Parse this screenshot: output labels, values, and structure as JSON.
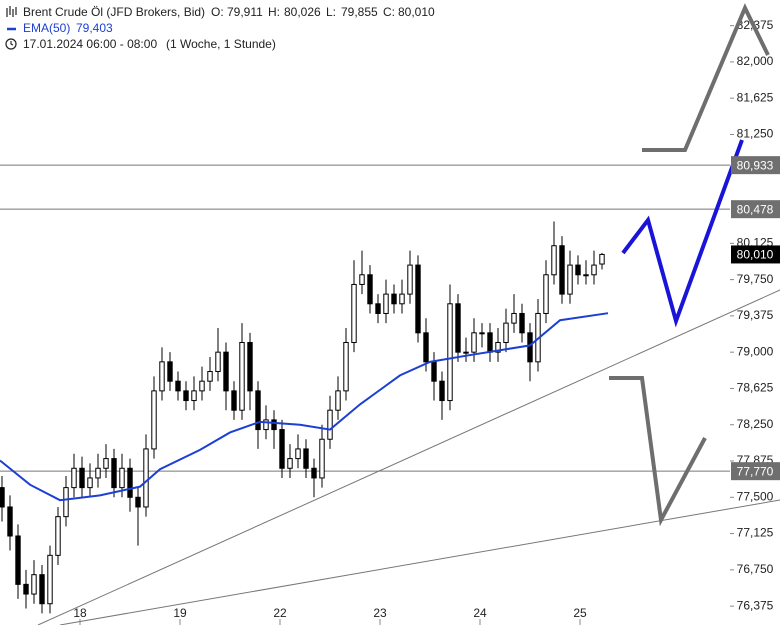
{
  "chart_data": {
    "type": "candlestick",
    "title": "Brent Crude Öl (JFD Brokers, Bid)",
    "ohlc": [
      {
        "key": "O:",
        "text": "79,911"
      },
      {
        "key": "H:",
        "text": "80,026"
      },
      {
        "key": "L:",
        "text": "79,855"
      },
      {
        "key": "C:",
        "text": "80,010"
      }
    ],
    "period": "17.01.2024 06:00 - 08:00",
    "interval": "(1 Woche, 1 Stunde)",
    "x": [
      0,
      1,
      2,
      3,
      4,
      5,
      6,
      7,
      8,
      9,
      10,
      11,
      12,
      13,
      14,
      15,
      16,
      17,
      18,
      19,
      20,
      21,
      22,
      23,
      24,
      25,
      26,
      27,
      28,
      29,
      30,
      31,
      32,
      33,
      34,
      35,
      36,
      37,
      38,
      39,
      40,
      41,
      42,
      43,
      44,
      45,
      46,
      47,
      48,
      49,
      50,
      51,
      52,
      53,
      54,
      55,
      56,
      57,
      58,
      59,
      60,
      61,
      62,
      63,
      64,
      65,
      66,
      67,
      68,
      69,
      70,
      71,
      72,
      73,
      74,
      75
    ],
    "open": [
      77.6,
      77.4,
      77.1,
      76.6,
      76.5,
      76.7,
      76.4,
      76.9,
      77.3,
      77.6,
      77.8,
      77.6,
      77.7,
      77.8,
      77.9,
      77.6,
      77.8,
      77.5,
      77.4,
      78.0,
      78.6,
      78.9,
      78.7,
      78.6,
      78.5,
      78.6,
      78.7,
      78.8,
      79.0,
      78.6,
      78.4,
      79.1,
      78.6,
      78.2,
      78.3,
      78.2,
      77.8,
      77.9,
      78.0,
      77.8,
      77.7,
      78.1,
      78.4,
      78.6,
      79.1,
      79.7,
      79.8,
      79.5,
      79.4,
      79.6,
      79.5,
      79.6,
      79.9,
      79.2,
      78.9,
      78.7,
      78.5,
      79.5,
      79.0,
      79.0,
      79.2,
      79.2,
      79.0,
      79.1,
      79.3,
      79.4,
      79.2,
      78.9,
      79.4,
      79.8,
      80.1,
      79.6,
      79.9,
      79.8,
      79.8,
      79.911
    ],
    "high": [
      77.72,
      77.52,
      77.22,
      76.75,
      76.85,
      76.8,
      77.0,
      77.4,
      77.72,
      77.95,
      77.92,
      77.85,
      77.95,
      78.05,
      78.0,
      77.95,
      77.9,
      77.6,
      78.15,
      78.75,
      79.05,
      79.0,
      78.8,
      78.7,
      78.75,
      78.85,
      78.95,
      79.25,
      79.1,
      78.7,
      79.3,
      79.2,
      78.7,
      78.45,
      78.4,
      78.3,
      78.05,
      78.15,
      78.1,
      77.9,
      78.25,
      78.55,
      78.75,
      79.25,
      79.95,
      80.05,
      79.9,
      79.6,
      79.75,
      79.7,
      79.75,
      80.05,
      80.0,
      79.35,
      79.0,
      78.8,
      79.7,
      79.6,
      79.15,
      79.35,
      79.3,
      79.3,
      79.25,
      79.45,
      79.6,
      79.5,
      79.3,
      79.55,
      79.95,
      80.35,
      80.2,
      80.05,
      80.0,
      79.95,
      80.05,
      80.026
    ],
    "low": [
      77.25,
      76.95,
      76.45,
      76.35,
      76.4,
      76.3,
      76.3,
      76.8,
      77.2,
      77.5,
      77.5,
      77.5,
      77.6,
      77.7,
      77.5,
      77.5,
      77.35,
      77.0,
      77.3,
      77.9,
      78.5,
      78.6,
      78.5,
      78.4,
      78.4,
      78.5,
      78.6,
      78.7,
      78.4,
      78.3,
      78.3,
      78.4,
      78.0,
      78.1,
      78.0,
      77.7,
      77.7,
      77.8,
      77.7,
      77.5,
      77.6,
      78.0,
      78.3,
      78.5,
      79.0,
      79.6,
      79.4,
      79.3,
      79.3,
      79.4,
      79.4,
      79.5,
      79.1,
      78.8,
      78.5,
      78.3,
      78.4,
      78.9,
      78.9,
      78.9,
      79.05,
      78.9,
      78.9,
      79.0,
      79.2,
      79.1,
      78.7,
      78.8,
      79.3,
      79.7,
      79.5,
      79.5,
      79.7,
      79.7,
      79.7,
      79.855
    ],
    "close": [
      77.4,
      77.1,
      76.6,
      76.5,
      76.7,
      76.4,
      76.9,
      77.3,
      77.6,
      77.8,
      77.6,
      77.7,
      77.8,
      77.9,
      77.6,
      77.8,
      77.5,
      77.4,
      78.0,
      78.6,
      78.9,
      78.7,
      78.6,
      78.5,
      78.6,
      78.7,
      78.8,
      79.0,
      78.6,
      78.4,
      79.1,
      78.6,
      78.2,
      78.3,
      78.2,
      77.8,
      77.9,
      78.0,
      77.8,
      77.7,
      78.1,
      78.4,
      78.6,
      79.1,
      79.7,
      79.8,
      79.5,
      79.4,
      79.6,
      79.5,
      79.6,
      79.9,
      79.2,
      78.9,
      78.7,
      78.5,
      79.5,
      79.0,
      79.0,
      79.2,
      79.2,
      79.0,
      79.1,
      79.3,
      79.4,
      79.2,
      78.9,
      79.4,
      79.8,
      80.1,
      79.6,
      79.9,
      79.8,
      79.8,
      79.9,
      80.01
    ],
    "up_color": "#ffffff",
    "down_color": "#000000",
    "ema": {
      "name": "EMA(50)",
      "value_label": "79,403",
      "color": "#1c3fd4",
      "x": [
        -0.25,
        3.5,
        7.25,
        12.25,
        17.25,
        19.75,
        24.75,
        28.5,
        32.25,
        37.25,
        41,
        44.75,
        49.75,
        53.5,
        58.5,
        62.25,
        66,
        69.75,
        75.75
      ],
      "values": [
        77.88,
        77.63,
        77.47,
        77.52,
        77.61,
        77.79,
        77.99,
        78.17,
        78.28,
        78.25,
        78.2,
        78.46,
        78.76,
        78.9,
        78.97,
        79.02,
        79.07,
        79.33,
        79.403
      ]
    },
    "levels": [
      {
        "value": 80.933,
        "label": "80,933"
      },
      {
        "value": 80.478,
        "label": "80,478"
      },
      {
        "value": 77.77,
        "label": "77,770"
      }
    ],
    "last_price": {
      "value": 80.01,
      "label": "80,010"
    },
    "xlim": [
      -0.25,
      91
    ],
    "xticks": [
      {
        "value": 9.75,
        "label": "18"
      },
      {
        "value": 22.25,
        "label": "19"
      },
      {
        "value": 34.75,
        "label": "22"
      },
      {
        "value": 47.25,
        "label": "23"
      },
      {
        "value": 59.75,
        "label": "24"
      },
      {
        "value": 72.25,
        "label": "25"
      }
    ],
    "ylim": [
      76.18,
      82.64
    ],
    "yticks": [
      {
        "value": 76.375,
        "label": "76,375"
      },
      {
        "value": 76.75,
        "label": "76,750"
      },
      {
        "value": 77.125,
        "label": "77,125"
      },
      {
        "value": 77.5,
        "label": "77,500"
      },
      {
        "value": 77.875,
        "label": "77,875"
      },
      {
        "value": 78.25,
        "label": "78,250"
      },
      {
        "value": 78.625,
        "label": "78,625"
      },
      {
        "value": 79.0,
        "label": "79,000"
      },
      {
        "value": 79.375,
        "label": "79,375"
      },
      {
        "value": 79.75,
        "label": "79,750"
      },
      {
        "value": 80.125,
        "label": "80,125"
      },
      {
        "value": 81.25,
        "label": "81,250"
      },
      {
        "value": 81.625,
        "label": "81,625"
      },
      {
        "value": 82.0,
        "label": "82,000"
      },
      {
        "value": 82.375,
        "label": "82,375"
      }
    ]
  }
}
